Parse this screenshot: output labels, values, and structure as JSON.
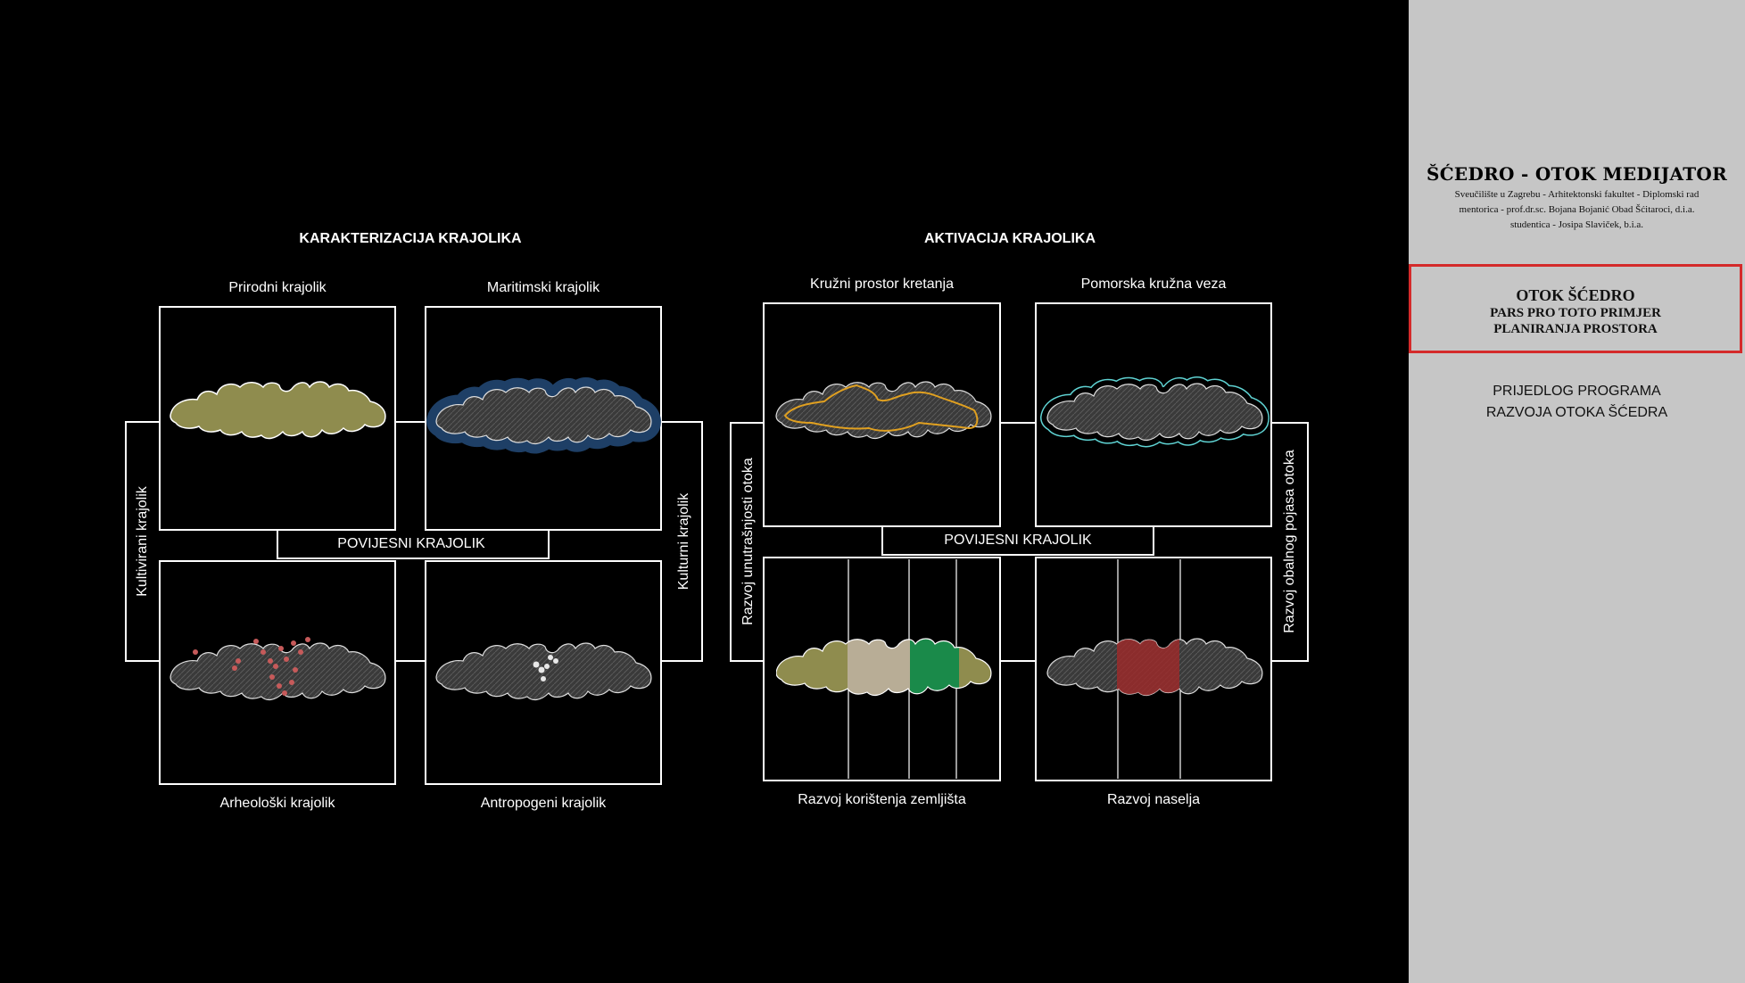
{
  "left_section": {
    "heading": "KARAKTERIZACIJA KRAJOLIKA",
    "top_left": "Prirodni krajolik",
    "top_right": "Maritimski krajolik",
    "bottom_left": "Arheološki krajolik",
    "bottom_right": "Antropogeni krajolik",
    "left_side": "Kultivirani krajolik",
    "right_side": "Kulturni krajolik",
    "center": "POVIJESNI KRAJOLIK"
  },
  "right_section": {
    "heading": "AKTIVACIJA KRAJOLIKA",
    "top_left": "Kružni prostor kretanja",
    "top_right": "Pomorska kružna veza",
    "bottom_left": "Razvoj korištenja zemljišta",
    "bottom_right": "Razvoj naselja",
    "left_side": "Razvoj unutrašnjosti otoka",
    "right_side": "Razvoj obalnog pojasa otoka",
    "center": "POVIJESNI KRAJOLIK"
  },
  "sidebar": {
    "title": "ŠĆEDRO - OTOK MEDIJATOR",
    "line1": "Sveučilište u Zagrebu - Arhitektonski fakultet - Diplomski rad",
    "line2": "mentorica - prof.dr.sc. Bojana Bojanić Obad Šćitaroci, d.i.a.",
    "line3": "studentica - Josipa Slaviček, b.i.a.",
    "box_line1": "OTOK ŠĆEDRO",
    "box_line2": "PARS PRO TOTO PRIMJER",
    "box_line3": "PLANIRANJA PROSTORA",
    "program_line1": "PRIJEDLOG PROGRAMA",
    "program_line2": "RAZVOJA OTOKA ŠĆEDRA"
  },
  "colors": {
    "background": "#000000",
    "sidebar": "#c6c6c6",
    "accent_red": "#d42a2a",
    "vegetation": "#8f8c4e",
    "sea_halo": "#1e3f66",
    "route_orange": "#e0a020",
    "route_cyan": "#5fd3d3",
    "archaeo_dot": "#c65a5a",
    "landuse_beige": "#b8ad96",
    "landuse_green": "#1a8a4a",
    "settlement_red": "#9a2a2a"
  }
}
